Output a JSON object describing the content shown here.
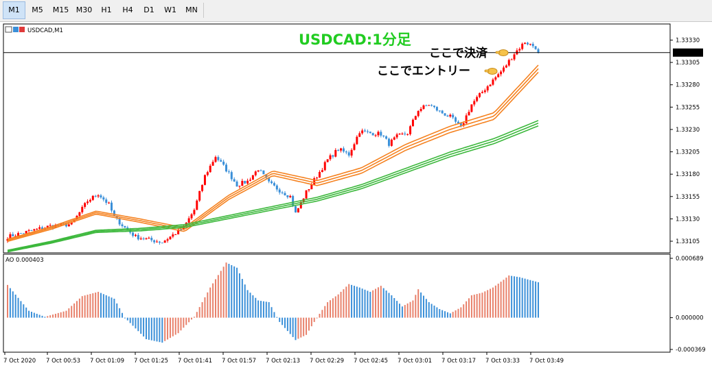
{
  "toolbar": {
    "timeframes": [
      "M1",
      "M5",
      "M15",
      "M30",
      "H1",
      "H4",
      "D1",
      "W1",
      "MN"
    ],
    "active": "M1"
  },
  "chart": {
    "symbol_label": "USDCAD,M1",
    "indicator_label": "AO 0.000403",
    "current_price": "1.33316",
    "annotation_title": "USDCAD:1分足",
    "annotation_exit": "ここで決済",
    "annotation_entry": "ここでエントリー",
    "exit_icon": "pointing-hand-icon",
    "entry_icon": "pointing-hand-icon",
    "colors": {
      "bull": "#ff0000",
      "bear": "#3a8fd8",
      "orange_ma": "#f58220",
      "green_ma": "#3cb83c",
      "ao_up": "#e8806a",
      "ao_down": "#3a8fd8",
      "title_green": "#22cc22"
    }
  },
  "chart_data": [
    {
      "type": "candlestick",
      "title": "USDCAD,M1",
      "y_ticks": [
        "1.33330",
        "1.33305",
        "1.33280",
        "1.33255",
        "1.33230",
        "1.33205",
        "1.33180",
        "1.33155",
        "1.33130",
        "1.33105"
      ],
      "x_ticks": [
        "7 Oct 2020",
        "7 Oct 00:53",
        "7 Oct 01:09",
        "7 Oct 01:25",
        "7 Oct 01:41",
        "7 Oct 01:57",
        "7 Oct 02:13",
        "7 Oct 02:29",
        "7 Oct 02:45",
        "7 Oct 03:01",
        "7 Oct 03:17",
        "7 Oct 03:33",
        "7 Oct 03:49"
      ],
      "ylim": [
        1.33092,
        1.33348
      ],
      "current_price": 1.33316,
      "close_path": [
        [
          0,
          1.3311
        ],
        [
          8,
          1.33116
        ],
        [
          16,
          1.33122
        ],
        [
          24,
          1.33124
        ],
        [
          30,
          1.3315
        ],
        [
          34,
          1.33158
        ],
        [
          38,
          1.33146
        ],
        [
          40,
          1.33132
        ],
        [
          44,
          1.3312
        ],
        [
          48,
          1.3311
        ],
        [
          54,
          1.33106
        ],
        [
          58,
          1.33104
        ],
        [
          62,
          1.33112
        ],
        [
          66,
          1.3312
        ],
        [
          70,
          1.3314
        ],
        [
          74,
          1.33178
        ],
        [
          78,
          1.332
        ],
        [
          82,
          1.33185
        ],
        [
          86,
          1.33168
        ],
        [
          90,
          1.33172
        ],
        [
          94,
          1.33186
        ],
        [
          98,
          1.3317
        ],
        [
          102,
          1.33162
        ],
        [
          106,
          1.33155
        ],
        [
          108,
          1.33136
        ],
        [
          112,
          1.3316
        ],
        [
          116,
          1.33178
        ],
        [
          120,
          1.33196
        ],
        [
          124,
          1.33208
        ],
        [
          128,
          1.33202
        ],
        [
          132,
          1.33228
        ],
        [
          136,
          1.33226
        ],
        [
          140,
          1.33225
        ],
        [
          143,
          1.33214
        ],
        [
          146,
          1.33222
        ],
        [
          150,
          1.33226
        ],
        [
          154,
          1.33252
        ],
        [
          158,
          1.33258
        ],
        [
          162,
          1.3325
        ],
        [
          166,
          1.33244
        ],
        [
          170,
          1.33232
        ],
        [
          174,
          1.33258
        ],
        [
          178,
          1.33272
        ],
        [
          182,
          1.33285
        ],
        [
          186,
          1.33298
        ],
        [
          190,
          1.33315
        ],
        [
          194,
          1.33328
        ],
        [
          198,
          1.33322
        ],
        [
          200,
          1.33316
        ]
      ],
      "series": [
        {
          "name": "",
          "kind": "ma_orange",
          "values": [
            1.33106,
            1.3312,
            1.33137,
            1.33128,
            1.33118,
            1.33154,
            1.33181,
            1.3317,
            1.33184,
            1.3321,
            1.3323,
            1.33245,
            1.33298
          ]
        },
        {
          "name": "",
          "kind": "ma_green",
          "values": [
            1.33094,
            1.33104,
            1.33116,
            1.33118,
            1.33122,
            1.33132,
            1.33142,
            1.33152,
            1.33166,
            1.33184,
            1.33202,
            1.33217,
            1.33237
          ]
        }
      ]
    },
    {
      "type": "bar",
      "title": "AO 0.000403",
      "y_ticks": [
        "0.000689",
        "0.000000",
        "-0.000369"
      ],
      "ylim": [
        -0.000369,
        0.000689
      ],
      "current_value": 0.000403,
      "x_ticks": [
        "7 Oct 2020",
        "7 Oct 00:53",
        "7 Oct 01:09",
        "7 Oct 01:25",
        "7 Oct 01:41",
        "7 Oct 01:57",
        "7 Oct 02:13",
        "7 Oct 02:29",
        "7 Oct 02:45",
        "7 Oct 03:01",
        "7 Oct 03:17",
        "7 Oct 03:33",
        "7 Oct 03:49"
      ],
      "keyframes": [
        [
          0,
          0.00038
        ],
        [
          8,
          8e-05
        ],
        [
          14,
          1e-05
        ],
        [
          22,
          8e-05
        ],
        [
          28,
          0.00025
        ],
        [
          34,
          0.0003
        ],
        [
          40,
          0.00022
        ],
        [
          44,
          0.0
        ],
        [
          52,
          -0.00025
        ],
        [
          58,
          -0.00029
        ],
        [
          64,
          -0.00018
        ],
        [
          70,
          1e-05
        ],
        [
          76,
          0.00035
        ],
        [
          82,
          0.00064
        ],
        [
          86,
          0.00058
        ],
        [
          90,
          0.00032
        ],
        [
          94,
          0.0002
        ],
        [
          98,
          0.00018
        ],
        [
          102,
          -5e-05
        ],
        [
          108,
          -0.00026
        ],
        [
          112,
          -0.0002
        ],
        [
          116,
          0.0
        ],
        [
          120,
          0.00018
        ],
        [
          124,
          0.00027
        ],
        [
          128,
          0.00039
        ],
        [
          132,
          0.00035
        ],
        [
          136,
          0.0003
        ],
        [
          140,
          0.00037
        ],
        [
          144,
          0.00026
        ],
        [
          148,
          0.00013
        ],
        [
          152,
          0.0002
        ],
        [
          154,
          0.00033
        ],
        [
          158,
          0.00018
        ],
        [
          162,
          0.0001
        ],
        [
          166,
          5e-05
        ],
        [
          170,
          0.00012
        ],
        [
          174,
          0.00026
        ],
        [
          178,
          0.00029
        ],
        [
          182,
          0.00035
        ],
        [
          186,
          0.00044
        ],
        [
          188,
          0.00049
        ],
        [
          192,
          0.00047
        ],
        [
          200,
          0.000403
        ]
      ]
    }
  ]
}
